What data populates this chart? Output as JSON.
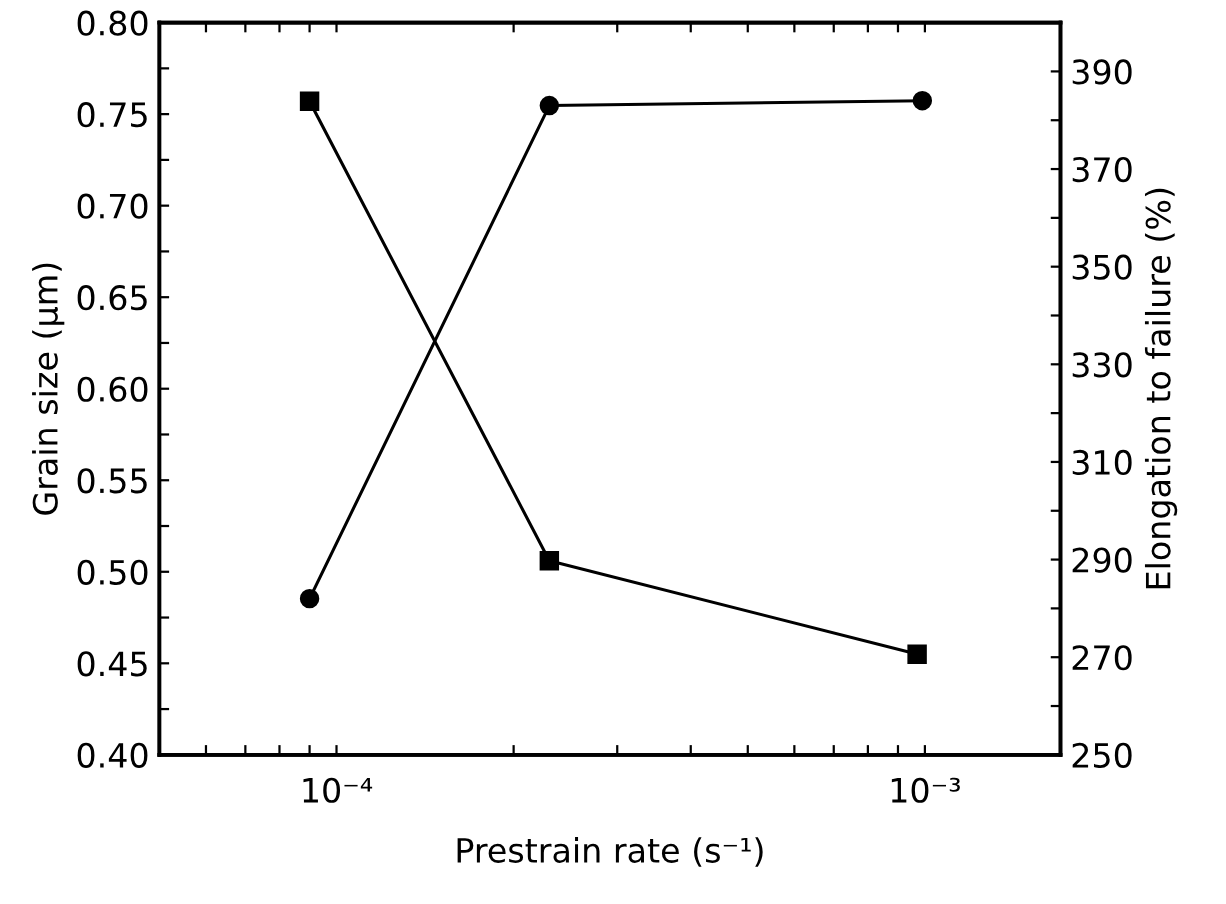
{
  "chart_data": {
    "type": "line",
    "xlabel": "Prestrain rate (s⁻¹)",
    "ylabel": "Grain size (µm)",
    "y2label": "Elongation to failure (%)",
    "log": "x",
    "grid": false,
    "legend": false,
    "line_style": "solid",
    "xlim": [
      5e-05,
      0.0017
    ],
    "xticks": [
      {
        "value": 6e-05,
        "label": null
      },
      {
        "value": 7e-05,
        "label": null
      },
      {
        "value": 8e-05,
        "label": null
      },
      {
        "value": 9e-05,
        "label": null
      },
      {
        "value": 0.0001,
        "label": "10⁻⁴"
      },
      {
        "value": 0.0002,
        "label": null
      },
      {
        "value": 0.0003,
        "label": null
      },
      {
        "value": 0.0004,
        "label": null
      },
      {
        "value": 0.0005,
        "label": null
      },
      {
        "value": 0.0006,
        "label": null
      },
      {
        "value": 0.0007,
        "label": null
      },
      {
        "value": 0.0008,
        "label": null
      },
      {
        "value": 0.0009,
        "label": null
      },
      {
        "value": 0.001,
        "label": "10⁻³"
      }
    ],
    "ylim": [
      0.4,
      0.8
    ],
    "yticks": [
      {
        "value": 0.4,
        "label": "0.40"
      },
      {
        "value": 0.425,
        "label": null
      },
      {
        "value": 0.45,
        "label": "0.45"
      },
      {
        "value": 0.475,
        "label": null
      },
      {
        "value": 0.5,
        "label": "0.50"
      },
      {
        "value": 0.525,
        "label": null
      },
      {
        "value": 0.55,
        "label": "0.55"
      },
      {
        "value": 0.575,
        "label": null
      },
      {
        "value": 0.6,
        "label": "0.60"
      },
      {
        "value": 0.625,
        "label": null
      },
      {
        "value": 0.65,
        "label": "0.65"
      },
      {
        "value": 0.675,
        "label": null
      },
      {
        "value": 0.7,
        "label": "0.70"
      },
      {
        "value": 0.725,
        "label": null
      },
      {
        "value": 0.75,
        "label": "0.75"
      },
      {
        "value": 0.775,
        "label": null
      },
      {
        "value": 0.8,
        "label": "0.80"
      }
    ],
    "y2lim": [
      250,
      400
    ],
    "y2ticks": [
      250,
      {
        "value": 260,
        "label": null
      },
      270,
      {
        "value": 280,
        "label": null
      },
      290,
      {
        "value": 300,
        "label": null
      },
      310,
      {
        "value": 320,
        "label": null
      },
      330,
      {
        "value": 340,
        "label": null
      },
      350,
      {
        "value": 360,
        "label": null
      },
      370,
      {
        "value": 380,
        "label": null
      },
      390,
      {
        "value": 400,
        "label": null
      }
    ],
    "series": [
      {
        "color": "#000000",
        "marker": "square",
        "x": [
          9e-05,
          0.00023,
          0.00097
        ],
        "values": [
          0.757,
          0.506,
          0.455
        ]
      },
      {
        "color": "#000000",
        "marker": "circle",
        "axis": "y2",
        "x": [
          9e-05,
          0.00023,
          0.00099
        ],
        "values": [
          282,
          383,
          384
        ]
      }
    ]
  }
}
